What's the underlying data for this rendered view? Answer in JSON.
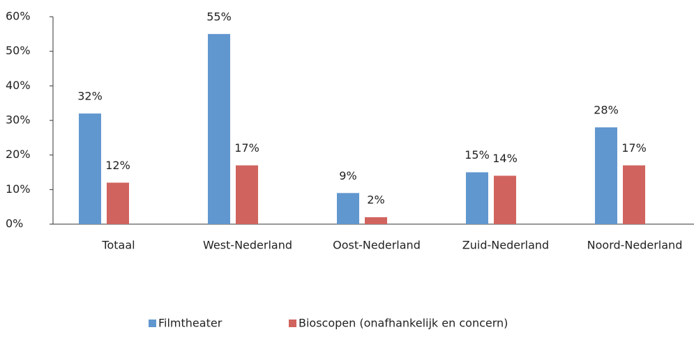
{
  "chart_data": {
    "type": "bar",
    "categories": [
      "Totaal",
      "West-Nederland",
      "Oost-Nederland",
      "Zuid-Nederland",
      "Noord-Nederland"
    ],
    "series": [
      {
        "name": "Filmtheater",
        "color": "#6197cf",
        "values": [
          32,
          55,
          9,
          15,
          28
        ],
        "value_labels": [
          "32%",
          "55%",
          "9%",
          "15%",
          "28%"
        ]
      },
      {
        "name": "Bioscopen (onafhankelijk en concern)",
        "color": "#d0635e",
        "values": [
          12,
          17,
          2,
          14,
          17
        ],
        "value_labels": [
          "12%",
          "17%",
          "2%",
          "14%",
          "17%"
        ]
      }
    ],
    "ylim": [
      0,
      60
    ],
    "yticks": [
      {
        "value": 0,
        "label": "0%"
      },
      {
        "value": 10,
        "label": "10%"
      },
      {
        "value": 20,
        "label": "20%"
      },
      {
        "value": 30,
        "label": "30%"
      },
      {
        "value": 40,
        "label": "40%"
      },
      {
        "value": 50,
        "label": "50%"
      },
      {
        "value": 60,
        "label": "60%"
      }
    ],
    "grid": false,
    "legend": "bottom"
  }
}
